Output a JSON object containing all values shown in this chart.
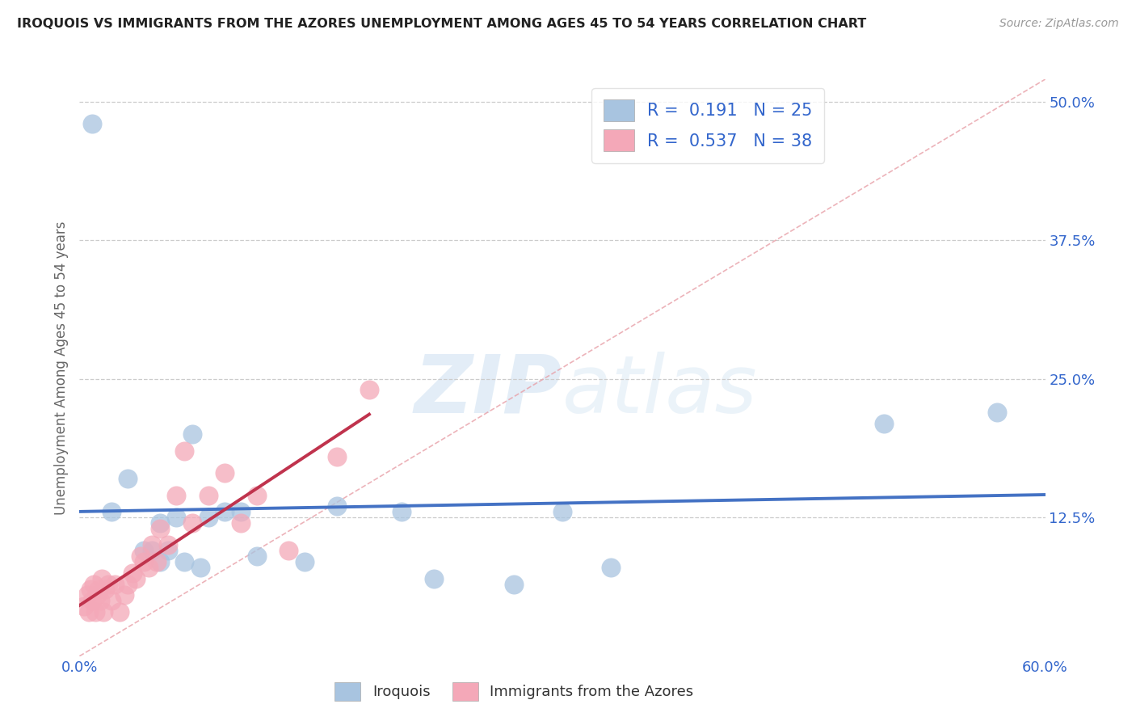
{
  "title": "IROQUOIS VS IMMIGRANTS FROM THE AZORES UNEMPLOYMENT AMONG AGES 45 TO 54 YEARS CORRELATION CHART",
  "source": "Source: ZipAtlas.com",
  "ylabel": "Unemployment Among Ages 45 to 54 years",
  "xlim": [
    0.0,
    0.6
  ],
  "ylim": [
    0.0,
    0.52
  ],
  "xticks": [
    0.0,
    0.1,
    0.2,
    0.3,
    0.4,
    0.5,
    0.6
  ],
  "xticklabels": [
    "0.0%",
    "",
    "",
    "",
    "",
    "",
    "60.0%"
  ],
  "yticks": [
    0.0,
    0.125,
    0.25,
    0.375,
    0.5
  ],
  "yticklabels": [
    "",
    "12.5%",
    "25.0%",
    "37.5%",
    "50.0%"
  ],
  "iroquois_color": "#a8c4e0",
  "azores_color": "#f4a8b8",
  "iroquois_line_color": "#4472c4",
  "azores_line_color": "#c0334d",
  "diag_line_color": "#e8a0a8",
  "r_iroquois": 0.191,
  "n_iroquois": 25,
  "r_azores": 0.537,
  "n_azores": 38,
  "legend_label_1": "Iroquois",
  "legend_label_2": "Immigrants from the Azores",
  "watermark_zip": "ZIP",
  "watermark_atlas": "atlas",
  "iroquois_x": [
    0.008,
    0.02,
    0.03,
    0.04,
    0.045,
    0.05,
    0.05,
    0.055,
    0.06,
    0.065,
    0.07,
    0.075,
    0.08,
    0.09,
    0.1,
    0.11,
    0.14,
    0.16,
    0.2,
    0.22,
    0.27,
    0.3,
    0.33,
    0.5,
    0.57
  ],
  "iroquois_y": [
    0.48,
    0.13,
    0.16,
    0.095,
    0.095,
    0.12,
    0.085,
    0.095,
    0.125,
    0.085,
    0.2,
    0.08,
    0.125,
    0.13,
    0.13,
    0.09,
    0.085,
    0.135,
    0.13,
    0.07,
    0.065,
    0.13,
    0.08,
    0.21,
    0.22
  ],
  "azores_x": [
    0.003,
    0.005,
    0.006,
    0.007,
    0.008,
    0.009,
    0.01,
    0.011,
    0.012,
    0.013,
    0.014,
    0.015,
    0.016,
    0.018,
    0.02,
    0.022,
    0.025,
    0.028,
    0.03,
    0.033,
    0.035,
    0.038,
    0.04,
    0.043,
    0.045,
    0.048,
    0.05,
    0.055,
    0.06,
    0.065,
    0.07,
    0.08,
    0.09,
    0.1,
    0.11,
    0.13,
    0.16,
    0.18
  ],
  "azores_y": [
    0.045,
    0.055,
    0.04,
    0.06,
    0.05,
    0.065,
    0.04,
    0.055,
    0.06,
    0.05,
    0.07,
    0.04,
    0.06,
    0.065,
    0.05,
    0.065,
    0.04,
    0.055,
    0.065,
    0.075,
    0.07,
    0.09,
    0.085,
    0.08,
    0.1,
    0.085,
    0.115,
    0.1,
    0.145,
    0.185,
    0.12,
    0.145,
    0.165,
    0.12,
    0.145,
    0.095,
    0.18,
    0.24
  ],
  "grid_color": "#cccccc",
  "background_color": "#ffffff"
}
